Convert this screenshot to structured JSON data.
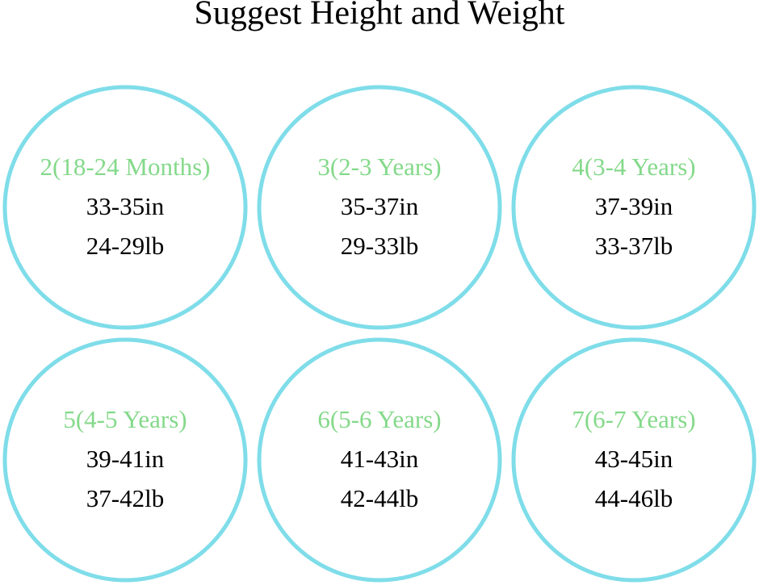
{
  "title": "Suggest Height and Weight",
  "sizes": [
    {
      "label": "2(18-24 Months)",
      "height": "33-35in",
      "weight": "24-29lb"
    },
    {
      "label": "3(2-3 Years)",
      "height": "35-37in",
      "weight": "29-33lb"
    },
    {
      "label": "4(3-4 Years)",
      "height": "37-39in",
      "weight": "33-37lb"
    },
    {
      "label": "5(4-5 Years)",
      "height": "39-41in",
      "weight": "37-42lb"
    },
    {
      "label": "6(5-6 Years)",
      "height": "41-43in",
      "weight": "42-44lb"
    },
    {
      "label": "7(6-7 Years)",
      "height": "43-45in",
      "weight": "44-46lb"
    }
  ]
}
